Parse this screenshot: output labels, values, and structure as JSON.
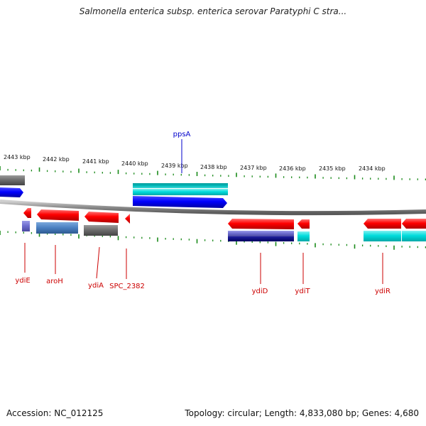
{
  "title": "Salmonella enterica subsp. enterica serovar Paratyphi C stra...",
  "footer": {
    "accession": "Accession: NC_012125",
    "summary": "Topology: circular; Length: 4,833,080 bp; Genes: 4,680"
  },
  "scale_labels": [
    "2443 kbp",
    "2442 kbp",
    "2441 kbp",
    "2440 kbp",
    "2439 kbp",
    "2438 kbp",
    "2437 kbp",
    "2436 kbp",
    "2435 kbp",
    "2434 kbp"
  ],
  "gene_labels": {
    "ppsA": "ppsA",
    "ydiE": "ydiE",
    "aroH": "aroH",
    "ydiA": "ydiA",
    "spc": "SPC_2382",
    "ydiD": "ydiD",
    "ydiT": "ydiT",
    "ydiR": "ydiR"
  },
  "colors": {
    "gene_forward": "#ff0000",
    "cds_blue": "#0000ff",
    "cds_cyan": "#00dddd",
    "cds_steel": "#4a7fc0",
    "cds_gray": "#6a6a6a",
    "cds_navy": "#000080",
    "tick_green": "#1a8a1a",
    "backbone": "#888888",
    "label_red": "#cc0000",
    "label_blue": "#0000cc"
  }
}
